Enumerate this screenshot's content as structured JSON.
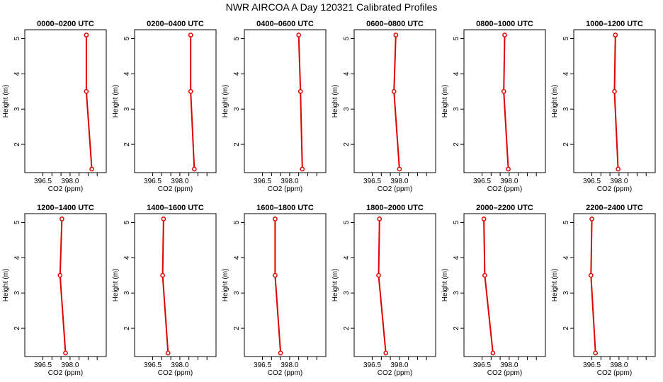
{
  "title": "NWR AIRCOA A  Day 120321  Calibrated Profiles",
  "chart_data": {
    "type": "line",
    "xlabel": "CO2 (ppm)",
    "ylabel": "Height (m)",
    "xlim": [
      395.5,
      400.0
    ],
    "ylim": [
      1.2,
      5.25
    ],
    "x_ticks": [
      396.5,
      398.0
    ],
    "x_tick_labels": [
      "396.5",
      "398.0"
    ],
    "y_ticks": [
      2,
      3,
      4,
      5
    ],
    "y_tick_labels": [
      "2",
      "3",
      "4",
      "5"
    ],
    "series_color": "#e00000",
    "panels": [
      {
        "title": "0000–0200 UTC",
        "points": [
          {
            "co2": 398.9,
            "height": 5.1
          },
          {
            "co2": 398.9,
            "height": 3.5
          },
          {
            "co2": 399.2,
            "height": 1.3
          }
        ]
      },
      {
        "title": "0200–0400 UTC",
        "points": [
          {
            "co2": 398.6,
            "height": 5.1
          },
          {
            "co2": 398.6,
            "height": 3.5
          },
          {
            "co2": 398.8,
            "height": 1.3
          }
        ]
      },
      {
        "title": "0400–0600 UTC",
        "points": [
          {
            "co2": 398.5,
            "height": 5.1
          },
          {
            "co2": 398.6,
            "height": 3.5
          },
          {
            "co2": 398.7,
            "height": 1.3
          }
        ]
      },
      {
        "title": "0600–0800 UTC",
        "points": [
          {
            "co2": 397.8,
            "height": 5.1
          },
          {
            "co2": 397.7,
            "height": 3.5
          },
          {
            "co2": 398.0,
            "height": 1.3
          }
        ]
      },
      {
        "title": "0800–1000 UTC",
        "points": [
          {
            "co2": 397.75,
            "height": 5.1
          },
          {
            "co2": 397.7,
            "height": 3.5
          },
          {
            "co2": 397.95,
            "height": 1.3
          }
        ]
      },
      {
        "title": "1000–1200 UTC",
        "points": [
          {
            "co2": 397.8,
            "height": 5.1
          },
          {
            "co2": 397.75,
            "height": 3.5
          },
          {
            "co2": 397.95,
            "height": 1.3
          }
        ]
      },
      {
        "title": "1200–1400 UTC",
        "points": [
          {
            "co2": 397.55,
            "height": 5.1
          },
          {
            "co2": 397.45,
            "height": 3.5
          },
          {
            "co2": 397.75,
            "height": 1.3
          }
        ]
      },
      {
        "title": "1400–1600 UTC",
        "points": [
          {
            "co2": 397.1,
            "height": 5.1
          },
          {
            "co2": 397.05,
            "height": 3.5
          },
          {
            "co2": 397.35,
            "height": 1.3
          }
        ]
      },
      {
        "title": "1600–1800 UTC",
        "points": [
          {
            "co2": 397.2,
            "height": 5.1
          },
          {
            "co2": 397.2,
            "height": 3.5
          },
          {
            "co2": 397.5,
            "height": 1.3
          }
        ]
      },
      {
        "title": "1800–2000 UTC",
        "points": [
          {
            "co2": 396.9,
            "height": 5.1
          },
          {
            "co2": 396.85,
            "height": 3.5
          },
          {
            "co2": 397.25,
            "height": 1.3
          }
        ]
      },
      {
        "title": "2000–2200 UTC",
        "points": [
          {
            "co2": 396.6,
            "height": 5.1
          },
          {
            "co2": 396.65,
            "height": 3.5
          },
          {
            "co2": 397.1,
            "height": 1.3
          }
        ]
      },
      {
        "title": "2200–2400 UTC",
        "points": [
          {
            "co2": 396.5,
            "height": 5.1
          },
          {
            "co2": 396.45,
            "height": 3.5
          },
          {
            "co2": 396.7,
            "height": 1.3
          }
        ]
      }
    ]
  }
}
